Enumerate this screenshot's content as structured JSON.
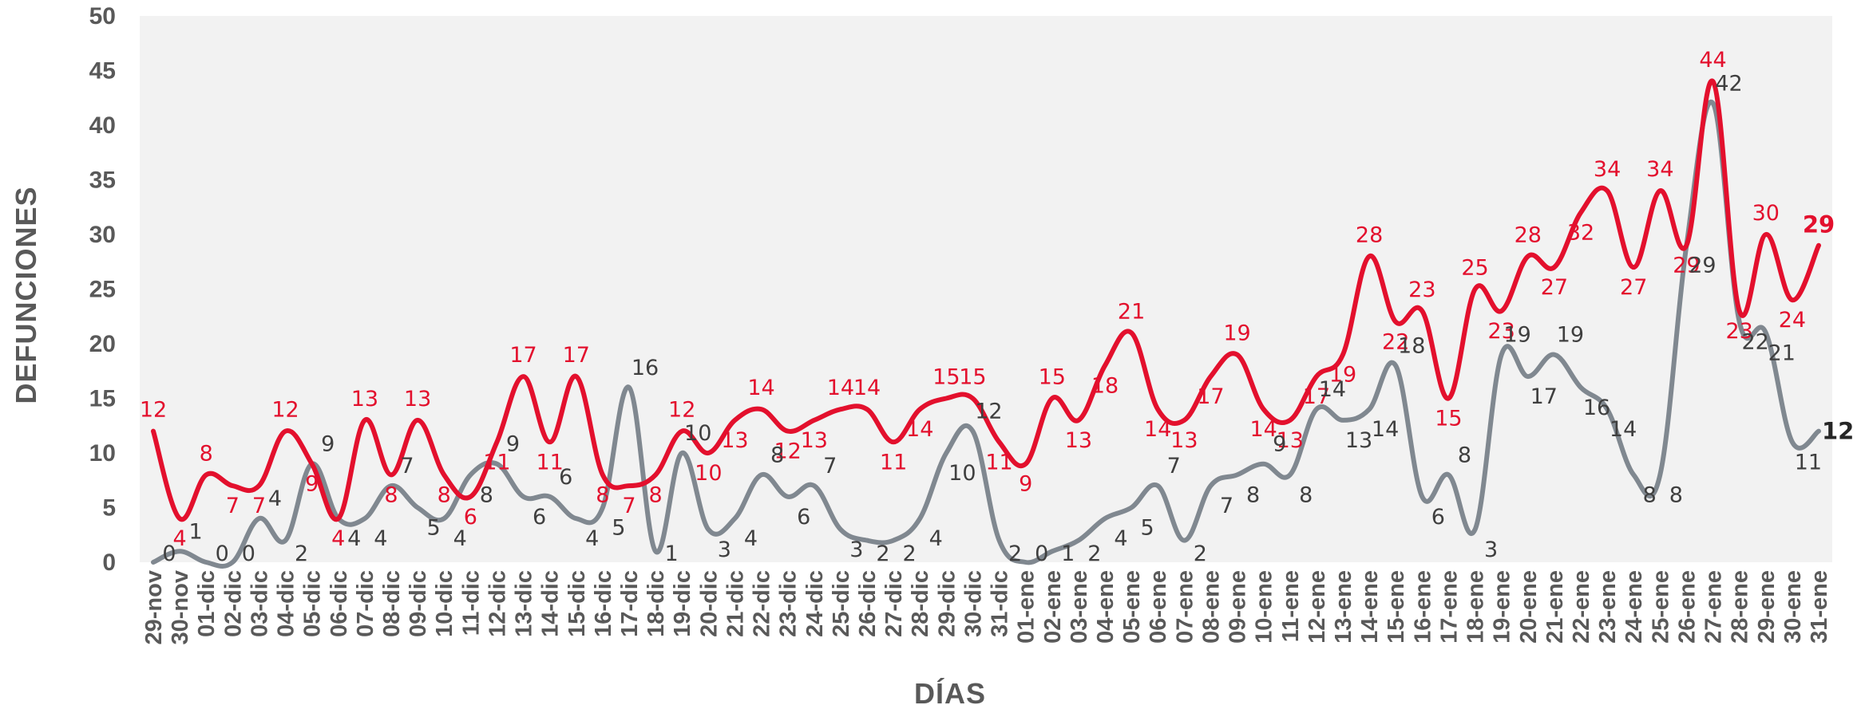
{
  "chart_data": {
    "type": "line",
    "xlabel": "DÍAS",
    "ylabel": "DEFUNCIONES",
    "ylim": [
      0,
      50
    ],
    "yticks": [
      0,
      5,
      10,
      15,
      20,
      25,
      30,
      35,
      40,
      45,
      50
    ],
    "grid": false,
    "legend": "none",
    "categories": [
      "29-nov",
      "30-nov",
      "01-dic",
      "02-dic",
      "03-dic",
      "04-dic",
      "05-dic",
      "06-dic",
      "07-dic",
      "08-dic",
      "09-dic",
      "10-dic",
      "11-dic",
      "12-dic",
      "13-dic",
      "14-dic",
      "15-dic",
      "16-dic",
      "17-dic",
      "18-dic",
      "19-dic",
      "20-dic",
      "21-dic",
      "22-dic",
      "23-dic",
      "24-dic",
      "25-dic",
      "26-dic",
      "27-dic",
      "28-dic",
      "29-dic",
      "30-dic",
      "31-dic",
      "01-ene",
      "02-ene",
      "03-ene",
      "04-ene",
      "05-ene",
      "06-ene",
      "07-ene",
      "08-ene",
      "09-ene",
      "10-ene",
      "11-ene",
      "12-ene",
      "13-ene",
      "14-ene",
      "15-ene",
      "16-ene",
      "17-ene",
      "18-ene",
      "19-ene",
      "20-ene",
      "21-ene",
      "22-ene",
      "23-ene",
      "24-ene",
      "25-ene",
      "26-ene",
      "27-ene",
      "28-ene",
      "29-ene",
      "30-ene",
      "31-ene"
    ],
    "series": [
      {
        "color": "#e3102d",
        "values": [
          12,
          4,
          8,
          7,
          7,
          12,
          9,
          4,
          13,
          8,
          13,
          8,
          6,
          11,
          17,
          11,
          17,
          8,
          7,
          8,
          12,
          10,
          13,
          14,
          12,
          13,
          14,
          14,
          11,
          14,
          15,
          15,
          11,
          9,
          15,
          13,
          18,
          21,
          14,
          13,
          17,
          19,
          14,
          13,
          17,
          19,
          28,
          22,
          23,
          15,
          25,
          23,
          28,
          27,
          32,
          34,
          27,
          34,
          29,
          44,
          23,
          30,
          24,
          29
        ]
      },
      {
        "color": "#808890",
        "values": [
          0,
          1,
          0,
          0,
          4,
          2,
          9,
          4,
          4,
          7,
          5,
          4,
          8,
          9,
          6,
          6,
          4,
          5,
          16,
          1,
          10,
          3,
          4,
          8,
          6,
          7,
          3,
          2,
          2,
          4,
          10,
          12,
          2,
          0,
          1,
          2,
          4,
          5,
          7,
          2,
          7,
          8,
          9,
          8,
          14,
          13,
          14,
          18,
          6,
          8,
          3,
          19,
          17,
          19,
          16,
          14,
          8,
          8,
          29,
          42,
          22,
          21,
          11,
          12
        ]
      }
    ]
  }
}
